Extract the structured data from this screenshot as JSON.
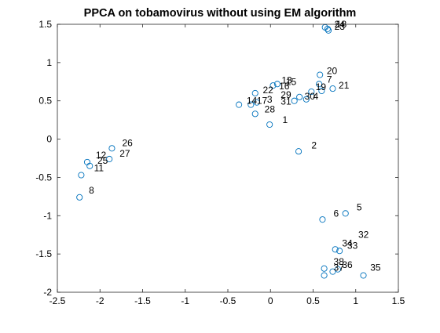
{
  "chart_data": {
    "type": "scatter",
    "title": "PPCA on tobamovirus without using EM algorithm",
    "xlabel": "",
    "ylabel": "",
    "xlim": [
      -2.5,
      1.5
    ],
    "ylim": [
      -2,
      1.5
    ],
    "xticks": [
      -2.5,
      -2,
      -1.5,
      -1,
      -0.5,
      0,
      0.5,
      1,
      1.5
    ],
    "yticks": [
      -2,
      -1.5,
      -1,
      -0.5,
      0,
      0.5,
      1,
      1.5
    ],
    "xtick_labels": [
      "-2.5",
      "-2",
      "-1.5",
      "-1",
      "-0.5",
      "0",
      "0.5",
      "1",
      "1.5"
    ],
    "ytick_labels": [
      "-2",
      "-1.5",
      "-1",
      "-0.5",
      "0",
      "0.5",
      "1",
      "1.5"
    ],
    "grid": false,
    "marker": "circle",
    "marker_color": "#0072bd",
    "points": [
      {
        "x": -0.01,
        "y": 0.19
      },
      {
        "x": 0.33,
        "y": -0.16
      },
      {
        "x": 0.58,
        "y": 0.84
      },
      {
        "x": 0.73,
        "y": 0.66
      },
      {
        "x": 0.57,
        "y": 0.72
      },
      {
        "x": 0.6,
        "y": 0.63
      },
      {
        "x": 0.48,
        "y": 0.62
      },
      {
        "x": 0.42,
        "y": 0.52
      },
      {
        "x": 0.34,
        "y": 0.55
      },
      {
        "x": 0.28,
        "y": 0.5
      },
      {
        "x": 0.08,
        "y": 0.72
      },
      {
        "x": 0.03,
        "y": 0.7
      },
      {
        "x": -0.18,
        "y": 0.6
      },
      {
        "x": -0.16,
        "y": 0.48
      },
      {
        "x": -0.23,
        "y": 0.45
      },
      {
        "x": -0.37,
        "y": 0.45
      },
      {
        "x": -0.18,
        "y": 0.33
      },
      {
        "x": 0.64,
        "y": 1.46
      },
      {
        "x": 0.67,
        "y": 1.44
      },
      {
        "x": 0.68,
        "y": 1.42
      },
      {
        "x": -1.86,
        "y": -0.12
      },
      {
        "x": -1.89,
        "y": -0.26
      },
      {
        "x": -2.15,
        "y": -0.3
      },
      {
        "x": -2.12,
        "y": -0.35
      },
      {
        "x": -2.22,
        "y": -0.47
      },
      {
        "x": -2.24,
        "y": -0.76
      },
      {
        "x": 0.61,
        "y": -1.05
      },
      {
        "x": 0.88,
        "y": -0.97
      },
      {
        "x": 0.76,
        "y": -1.44
      },
      {
        "x": 0.81,
        "y": -1.46
      },
      {
        "x": 0.73,
        "y": -1.73
      },
      {
        "x": 0.79,
        "y": -1.7
      },
      {
        "x": 0.63,
        "y": -1.69
      },
      {
        "x": 0.63,
        "y": -1.78
      },
      {
        "x": 1.09,
        "y": -1.78
      }
    ],
    "annotations": [
      {
        "text": "1",
        "x": 0.14,
        "y": 0.25
      },
      {
        "text": "2",
        "x": 0.48,
        "y": -0.08
      },
      {
        "text": "20",
        "x": 0.66,
        "y": 0.89
      },
      {
        "text": "7",
        "x": 0.66,
        "y": 0.78
      },
      {
        "text": "21",
        "x": 0.8,
        "y": 0.7
      },
      {
        "text": "19",
        "x": 0.53,
        "y": 0.68
      },
      {
        "text": "30",
        "x": 0.4,
        "y": 0.56
      },
      {
        "text": "4",
        "x": 0.5,
        "y": 0.56
      },
      {
        "text": "13",
        "x": 0.13,
        "y": 0.77
      },
      {
        "text": "15",
        "x": 0.18,
        "y": 0.75
      },
      {
        "text": "16",
        "x": 0.1,
        "y": 0.69
      },
      {
        "text": "22",
        "x": -0.09,
        "y": 0.64
      },
      {
        "text": "29",
        "x": 0.12,
        "y": 0.58
      },
      {
        "text": "3",
        "x": -0.04,
        "y": 0.52
      },
      {
        "text": "31",
        "x": 0.12,
        "y": 0.49
      },
      {
        "text": "14",
        "x": -0.28,
        "y": 0.5
      },
      {
        "text": "17",
        "x": -0.16,
        "y": 0.5
      },
      {
        "text": "28",
        "x": -0.07,
        "y": 0.39
      },
      {
        "text": "24",
        "x": 0.75,
        "y": 1.5
      },
      {
        "text": "18",
        "x": 0.77,
        "y": 1.5
      },
      {
        "text": "23",
        "x": 0.75,
        "y": 1.47
      },
      {
        "text": "26",
        "x": -1.74,
        "y": -0.05
      },
      {
        "text": "27",
        "x": -1.77,
        "y": -0.19
      },
      {
        "text": "12",
        "x": -2.05,
        "y": -0.21
      },
      {
        "text": "25",
        "x": -2.03,
        "y": -0.28
      },
      {
        "text": "11",
        "x": -2.07,
        "y": -0.38
      },
      {
        "text": "8",
        "x": -2.13,
        "y": -0.67
      },
      {
        "text": "6",
        "x": 0.74,
        "y": -0.97
      },
      {
        "text": "5",
        "x": 1.01,
        "y": -0.89
      },
      {
        "text": "32",
        "x": 1.03,
        "y": -1.25
      },
      {
        "text": "34",
        "x": 0.84,
        "y": -1.36
      },
      {
        "text": "33",
        "x": 0.9,
        "y": -1.39
      },
      {
        "text": "38",
        "x": 0.74,
        "y": -1.6
      },
      {
        "text": "36",
        "x": 0.84,
        "y": -1.64
      },
      {
        "text": "37",
        "x": 0.74,
        "y": -1.68
      },
      {
        "text": "35",
        "x": 1.17,
        "y": -1.68
      }
    ]
  }
}
